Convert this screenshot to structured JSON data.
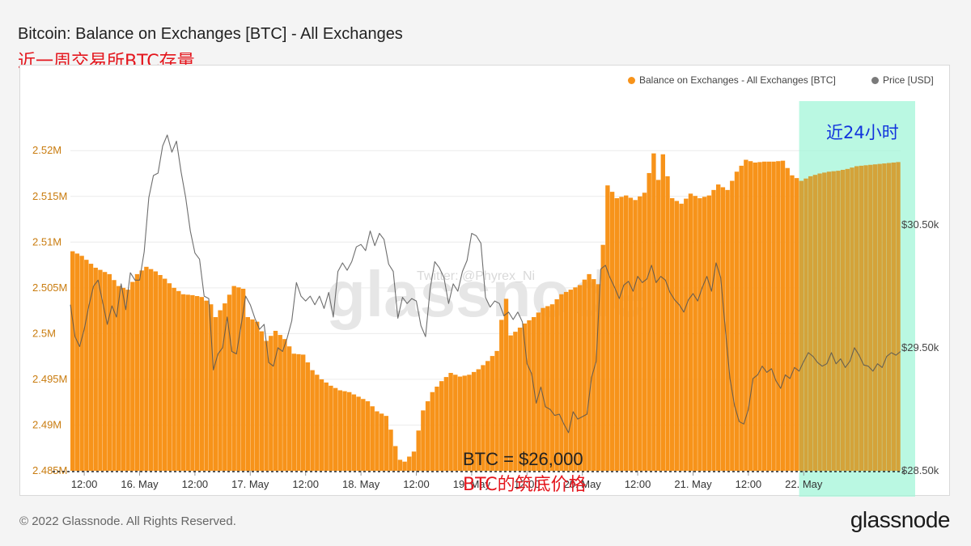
{
  "title": "Bitcoin: Balance on Exchanges [BTC] - All Exchanges",
  "subtitle": "近一周交易所BTC存量",
  "footer": {
    "copyright": "© 2022 Glassnode. All Rights Reserved.",
    "logo": "glassnode"
  },
  "watermark": {
    "logo": "glassnode",
    "twitter": "Twitter: @Phyrex_Ni"
  },
  "annotations": {
    "last24h": "近24小时",
    "price_line": "BTC = $26,000",
    "price_line_cn": "BTC的筑底价格"
  },
  "colors": {
    "balance": "#f7931a",
    "price": "#7a7a7a",
    "highlight": "#a3f5d8",
    "left_axis_text": "#c97c0f",
    "annotation_red": "#e4151c",
    "annotation_blue": "#1133dd"
  },
  "chart_data": {
    "type": "area",
    "legend": [
      {
        "name": "Balance on Exchanges - All Exchanges [BTC]",
        "color": "#f7931a"
      },
      {
        "name": "Price [USD]",
        "color": "#7a7a7a"
      }
    ],
    "legend_position": "top-right",
    "grid": true,
    "x_tick_labels": [
      "12:00",
      "16. May",
      "12:00",
      "17. May",
      "12:00",
      "18. May",
      "12:00",
      "19. May",
      "12:00",
      "20. May",
      "12:00",
      "21. May",
      "12:00",
      "22. May"
    ],
    "left_axis": {
      "ticks": [
        "2.485M",
        "2.49M",
        "2.495M",
        "2.5M",
        "2.505M",
        "2.51M",
        "2.515M",
        "2.52M"
      ],
      "ylim": [
        2485000,
        2524000
      ]
    },
    "right_axis": {
      "ticks": [
        "$28.50k",
        "$29.50k",
        "$30.50k"
      ],
      "ylim": [
        28500,
        31400
      ]
    },
    "x_hours_range": [
      0,
      180
    ],
    "highlight_range_hours": [
      158,
      180
    ],
    "series": [
      {
        "name": "Balance on Exchanges - All Exchanges [BTC]",
        "axis": "left",
        "points": [
          [
            0,
            2509000
          ],
          [
            2,
            2508500
          ],
          [
            5,
            2507200
          ],
          [
            8,
            2506500
          ],
          [
            10,
            2505200
          ],
          [
            12,
            2504800
          ],
          [
            14,
            2506500
          ],
          [
            16,
            2507300
          ],
          [
            18,
            2506800
          ],
          [
            20,
            2506000
          ],
          [
            22,
            2505000
          ],
          [
            24,
            2504300
          ],
          [
            26,
            2504200
          ],
          [
            28,
            2504000
          ],
          [
            30,
            2503200
          ],
          [
            31,
            2501800
          ],
          [
            33,
            2503300
          ],
          [
            35,
            2505200
          ],
          [
            37,
            2504900
          ],
          [
            38,
            2501800
          ],
          [
            40,
            2501300
          ],
          [
            42,
            2499200
          ],
          [
            44,
            2500300
          ],
          [
            46,
            2499400
          ],
          [
            48,
            2497800
          ],
          [
            50,
            2497700
          ],
          [
            52,
            2496000
          ],
          [
            54,
            2495000
          ],
          [
            56,
            2494300
          ],
          [
            58,
            2493800
          ],
          [
            60,
            2493600
          ],
          [
            62,
            2493100
          ],
          [
            64,
            2492600
          ],
          [
            66,
            2491500
          ],
          [
            68,
            2491000
          ],
          [
            69,
            2489500
          ],
          [
            70,
            2487700
          ],
          [
            71,
            2486200
          ],
          [
            72,
            2486000
          ],
          [
            74,
            2487100
          ],
          [
            75,
            2489400
          ],
          [
            76,
            2491600
          ],
          [
            78,
            2493600
          ],
          [
            80,
            2494800
          ],
          [
            82,
            2495700
          ],
          [
            84,
            2495300
          ],
          [
            86,
            2495500
          ],
          [
            88,
            2496100
          ],
          [
            90,
            2497000
          ],
          [
            92,
            2498100
          ],
          [
            93,
            2501500
          ],
          [
            94,
            2503800
          ],
          [
            95,
            2499800
          ],
          [
            96,
            2500200
          ],
          [
            98,
            2501100
          ],
          [
            100,
            2501800
          ],
          [
            102,
            2502800
          ],
          [
            104,
            2503200
          ],
          [
            106,
            2504300
          ],
          [
            108,
            2504800
          ],
          [
            110,
            2505300
          ],
          [
            112,
            2506500
          ],
          [
            114,
            2505400
          ],
          [
            115,
            2509700
          ],
          [
            116,
            2516200
          ],
          [
            118,
            2514800
          ],
          [
            120,
            2515100
          ],
          [
            122,
            2514600
          ],
          [
            124,
            2515400
          ],
          [
            126,
            2519700
          ],
          [
            127,
            2516800
          ],
          [
            128,
            2519600
          ],
          [
            130,
            2514800
          ],
          [
            132,
            2514200
          ],
          [
            134,
            2515300
          ],
          [
            136,
            2514800
          ],
          [
            138,
            2515100
          ],
          [
            140,
            2516300
          ],
          [
            142,
            2515700
          ],
          [
            144,
            2517700
          ],
          [
            146,
            2519000
          ],
          [
            148,
            2518700
          ],
          [
            150,
            2518800
          ],
          [
            152,
            2518800
          ],
          [
            154,
            2518900
          ],
          [
            156,
            2517300
          ],
          [
            158,
            2516700
          ],
          [
            160,
            2517200
          ],
          [
            162,
            2517500
          ],
          [
            164,
            2517700
          ],
          [
            166,
            2517800
          ],
          [
            168,
            2518000
          ],
          [
            170,
            2518300
          ],
          [
            172,
            2518400
          ],
          [
            174,
            2518500
          ],
          [
            176,
            2518600
          ],
          [
            178,
            2518700
          ],
          [
            180,
            2518800
          ]
        ]
      },
      {
        "name": "Price [USD]",
        "axis": "right",
        "points": [
          [
            0,
            29850
          ],
          [
            1,
            29590
          ],
          [
            2,
            29510
          ],
          [
            3,
            29650
          ],
          [
            4,
            29840
          ],
          [
            5,
            30000
          ],
          [
            6,
            30050
          ],
          [
            7,
            29870
          ],
          [
            8,
            29690
          ],
          [
            9,
            29840
          ],
          [
            10,
            29750
          ],
          [
            11,
            30020
          ],
          [
            12,
            29810
          ],
          [
            13,
            30110
          ],
          [
            14,
            30050
          ],
          [
            15,
            30050
          ],
          [
            16,
            30280
          ],
          [
            17,
            30720
          ],
          [
            18,
            30900
          ],
          [
            19,
            30920
          ],
          [
            20,
            31140
          ],
          [
            21,
            31230
          ],
          [
            22,
            31090
          ],
          [
            23,
            31180
          ],
          [
            24,
            30930
          ],
          [
            25,
            30720
          ],
          [
            26,
            30450
          ],
          [
            27,
            30270
          ],
          [
            28,
            30220
          ],
          [
            29,
            29920
          ],
          [
            30,
            29900
          ],
          [
            31,
            29320
          ],
          [
            32,
            29450
          ],
          [
            33,
            29500
          ],
          [
            34,
            29750
          ],
          [
            35,
            29470
          ],
          [
            36,
            29450
          ],
          [
            37,
            29680
          ],
          [
            38,
            29920
          ],
          [
            39,
            29850
          ],
          [
            40,
            29740
          ],
          [
            41,
            29650
          ],
          [
            42,
            29690
          ],
          [
            43,
            29380
          ],
          [
            44,
            29350
          ],
          [
            45,
            29500
          ],
          [
            46,
            29470
          ],
          [
            47,
            29580
          ],
          [
            48,
            29720
          ],
          [
            49,
            30030
          ],
          [
            50,
            29920
          ],
          [
            51,
            29880
          ],
          [
            52,
            29920
          ],
          [
            53,
            29850
          ],
          [
            54,
            29920
          ],
          [
            55,
            29820
          ],
          [
            56,
            29950
          ],
          [
            57,
            29750
          ],
          [
            58,
            30120
          ],
          [
            59,
            30190
          ],
          [
            60,
            30130
          ],
          [
            61,
            30200
          ],
          [
            62,
            30320
          ],
          [
            63,
            30340
          ],
          [
            64,
            30290
          ],
          [
            65,
            30450
          ],
          [
            66,
            30330
          ],
          [
            67,
            30430
          ],
          [
            68,
            30380
          ],
          [
            69,
            30180
          ],
          [
            70,
            30120
          ],
          [
            71,
            29740
          ],
          [
            72,
            29910
          ],
          [
            73,
            29860
          ],
          [
            74,
            29900
          ],
          [
            75,
            29880
          ],
          [
            76,
            29680
          ],
          [
            77,
            29590
          ],
          [
            78,
            29980
          ],
          [
            79,
            30200
          ],
          [
            80,
            30150
          ],
          [
            81,
            30070
          ],
          [
            82,
            29860
          ],
          [
            83,
            30020
          ],
          [
            84,
            29960
          ],
          [
            85,
            30120
          ],
          [
            86,
            30210
          ],
          [
            87,
            30430
          ],
          [
            88,
            30410
          ],
          [
            89,
            30350
          ],
          [
            90,
            29910
          ],
          [
            91,
            29830
          ],
          [
            92,
            29880
          ],
          [
            93,
            29860
          ],
          [
            94,
            29760
          ],
          [
            95,
            29790
          ],
          [
            96,
            29730
          ],
          [
            97,
            29790
          ],
          [
            98,
            29710
          ],
          [
            99,
            29370
          ],
          [
            100,
            29290
          ],
          [
            101,
            29050
          ],
          [
            102,
            29180
          ],
          [
            103,
            29020
          ],
          [
            104,
            29000
          ],
          [
            105,
            28950
          ],
          [
            106,
            28960
          ],
          [
            107,
            28880
          ],
          [
            108,
            28810
          ],
          [
            109,
            28980
          ],
          [
            110,
            28920
          ],
          [
            111,
            28940
          ],
          [
            112,
            28960
          ],
          [
            113,
            29260
          ],
          [
            114,
            29390
          ],
          [
            115,
            30140
          ],
          [
            116,
            30170
          ],
          [
            117,
            30070
          ],
          [
            118,
            29990
          ],
          [
            119,
            29900
          ],
          [
            120,
            30010
          ],
          [
            121,
            30040
          ],
          [
            122,
            29960
          ],
          [
            123,
            30080
          ],
          [
            124,
            30030
          ],
          [
            125,
            30060
          ],
          [
            126,
            30170
          ],
          [
            127,
            30030
          ],
          [
            128,
            30080
          ],
          [
            129,
            30050
          ],
          [
            130,
            29950
          ],
          [
            131,
            29890
          ],
          [
            132,
            29850
          ],
          [
            133,
            29790
          ],
          [
            134,
            29890
          ],
          [
            135,
            29940
          ],
          [
            136,
            29880
          ],
          [
            137,
            29990
          ],
          [
            138,
            30080
          ],
          [
            139,
            29960
          ],
          [
            140,
            30190
          ],
          [
            141,
            30070
          ],
          [
            142,
            29650
          ],
          [
            143,
            29250
          ],
          [
            144,
            29030
          ],
          [
            145,
            28900
          ],
          [
            146,
            28880
          ],
          [
            147,
            29000
          ],
          [
            148,
            29250
          ],
          [
            149,
            29280
          ],
          [
            150,
            29350
          ],
          [
            151,
            29300
          ],
          [
            152,
            29330
          ],
          [
            153,
            29230
          ],
          [
            154,
            29170
          ],
          [
            155,
            29280
          ],
          [
            156,
            29250
          ],
          [
            157,
            29340
          ],
          [
            158,
            29310
          ],
          [
            159,
            29390
          ],
          [
            160,
            29460
          ],
          [
            161,
            29430
          ],
          [
            162,
            29380
          ],
          [
            163,
            29350
          ],
          [
            164,
            29370
          ],
          [
            165,
            29460
          ],
          [
            166,
            29370
          ],
          [
            167,
            29410
          ],
          [
            168,
            29340
          ],
          [
            169,
            29390
          ],
          [
            170,
            29500
          ],
          [
            171,
            29440
          ],
          [
            172,
            29360
          ],
          [
            173,
            29350
          ],
          [
            174,
            29310
          ],
          [
            175,
            29370
          ],
          [
            176,
            29340
          ],
          [
            177,
            29430
          ],
          [
            178,
            29460
          ],
          [
            179,
            29440
          ],
          [
            180,
            29470
          ]
        ]
      }
    ]
  }
}
